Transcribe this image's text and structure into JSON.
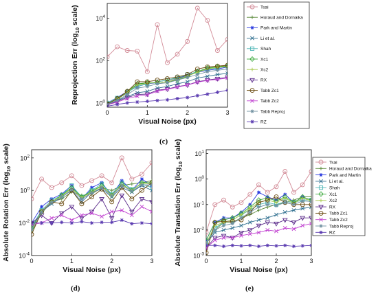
{
  "legend_names": [
    "Tsai",
    "Horaud and Dornaika",
    "Park and Martin",
    "Li et al.",
    "Shah",
    "Xc1",
    "Xc2",
    "RX",
    "Tabb Zc1",
    "Tabb Zc2",
    "Tabb Reproj",
    "RZ"
  ],
  "series_style": [
    {
      "color": "#d28a96",
      "marker": "circle"
    },
    {
      "color": "#5a8a3a",
      "marker": "plus"
    },
    {
      "color": "#2a3adf",
      "marker": "star"
    },
    {
      "color": "#2f6f8f",
      "marker": "x"
    },
    {
      "color": "#4fb6b6",
      "marker": "square"
    },
    {
      "color": "#3aa83a",
      "marker": "diamond"
    },
    {
      "color": "#a6c84a",
      "marker": "plus"
    },
    {
      "color": "#5a2a8a",
      "marker": "tri-down"
    },
    {
      "color": "#6a4a10",
      "marker": "circle"
    },
    {
      "color": "#c040d0",
      "marker": "x"
    },
    {
      "color": "#7090a0",
      "marker": "star"
    },
    {
      "color": "#5a3ab0",
      "marker": "star"
    }
  ],
  "chart_data": [
    {
      "type": "line",
      "panel_label": "(c)",
      "ylabel_main": "Reprojection Err (log",
      "ylabel_sub": "10",
      "ylabel_tail": " scale)",
      "xlabel": "Visual Noise (px)",
      "xlim": [
        0,
        3
      ],
      "ylim_log10": [
        -0.2,
        4.7
      ],
      "x_ticks": [
        {
          "v": 0,
          "t": "0"
        },
        {
          "v": 1,
          "t": "1"
        },
        {
          "v": 2,
          "t": "2"
        },
        {
          "v": 3,
          "t": "3"
        }
      ],
      "y_ticks": [
        {
          "e": 0,
          "base": "10",
          "exp": "0"
        },
        {
          "e": 2,
          "base": "10",
          "exp": "2"
        },
        {
          "e": 4,
          "base": "10",
          "exp": "4"
        }
      ],
      "x": [
        0,
        0.25,
        0.5,
        0.75,
        1,
        1.25,
        1.5,
        1.75,
        2,
        2.25,
        2.5,
        2.75,
        3
      ],
      "series": [
        {
          "values": [
            150,
            450,
            300,
            280,
            30,
            5000,
            80,
            200,
            800,
            30000,
            8000,
            300,
            1000
          ]
        },
        {
          "values": [
            0.9,
            1.5,
            3,
            8,
            8,
            10,
            12,
            15,
            20,
            30,
            40,
            50,
            60
          ]
        },
        {
          "values": [
            1,
            1.8,
            3.5,
            6,
            8,
            9,
            10,
            14,
            20,
            28,
            35,
            40,
            50
          ]
        },
        {
          "values": [
            0.9,
            1.3,
            2,
            3,
            3.5,
            5,
            6,
            8,
            10,
            15,
            18,
            22,
            25
          ]
        },
        {
          "values": [
            1,
            1.7,
            3.2,
            6,
            8,
            10,
            12,
            16,
            22,
            30,
            38,
            45,
            55
          ]
        },
        {
          "values": [
            0.9,
            1.6,
            3.5,
            8,
            9,
            9,
            10,
            12,
            18,
            30,
            45,
            50,
            55
          ]
        },
        {
          "values": [
            0.9,
            1.6,
            3.3,
            7,
            8.5,
            9,
            10,
            13,
            19,
            28,
            40,
            48,
            52
          ]
        },
        {
          "values": [
            0.8,
            1.2,
            1.8,
            2.5,
            2.6,
            4,
            4.5,
            6,
            7,
            10,
            12,
            14,
            16
          ]
        },
        {
          "values": [
            0.9,
            1.6,
            3.5,
            10,
            10,
            12,
            14,
            17,
            22,
            40,
            50,
            55,
            60
          ]
        },
        {
          "values": [
            0.8,
            1.1,
            1.6,
            2.1,
            2.4,
            3.6,
            4.4,
            5.6,
            7,
            9.5,
            11.5,
            13,
            15
          ]
        },
        {
          "values": [
            0.85,
            1.3,
            2.5,
            5,
            6,
            8,
            9,
            12,
            16,
            22,
            30,
            35,
            40
          ]
        },
        {
          "values": [
            0.7,
            0.85,
            1,
            1.1,
            1.2,
            1.3,
            1.4,
            1.6,
            1.8,
            2.2,
            2.6,
            3.2,
            4
          ]
        }
      ]
    },
    {
      "type": "line",
      "panel_label": "(d)",
      "ylabel_main": "Absolute Rotation Err (log",
      "ylabel_sub": "10",
      "ylabel_tail": " scale)",
      "xlabel": "Visual Noise (px)",
      "xlim": [
        0,
        3
      ],
      "ylim_log10": [
        -4,
        2.5
      ],
      "x_ticks": [
        {
          "v": 0,
          "t": "0"
        },
        {
          "v": 1,
          "t": "1"
        },
        {
          "v": 2,
          "t": "2"
        },
        {
          "v": 3,
          "t": "3"
        }
      ],
      "y_ticks": [
        {
          "e": -4,
          "base": "10",
          "exp": "-4"
        },
        {
          "e": -2,
          "base": "10",
          "exp": "-2"
        },
        {
          "e": 0,
          "base": "10",
          "exp": "0"
        },
        {
          "e": 2,
          "base": "10",
          "exp": "2"
        }
      ],
      "x": [
        0,
        0.25,
        0.5,
        0.75,
        1,
        1.25,
        1.5,
        1.75,
        2,
        2.25,
        2.5,
        2.75,
        3
      ],
      "series": [
        {
          "values": [
            0.3,
            5,
            1.5,
            3,
            8,
            2,
            4,
            8,
            3,
            100,
            5,
            10,
            50
          ]
        },
        {
          "values": [
            0.003,
            0.04,
            0.2,
            0.3,
            0.8,
            0.5,
            0.6,
            1.5,
            1,
            2,
            2.5,
            3,
            4
          ]
        },
        {
          "values": [
            0.01,
            0.1,
            0.3,
            0.6,
            2,
            0.3,
            1.5,
            3,
            0.5,
            4,
            1,
            5,
            2
          ]
        },
        {
          "values": [
            0.005,
            0.05,
            0.15,
            0.4,
            1,
            0.2,
            0.8,
            1.2,
            0.4,
            1.5,
            0.8,
            2,
            1
          ]
        },
        {
          "values": [
            0.006,
            0.06,
            0.25,
            0.5,
            2,
            0.4,
            1,
            2.5,
            0.6,
            3,
            1.2,
            2.5,
            1.5
          ]
        },
        {
          "values": [
            0.005,
            0.05,
            0.2,
            0.5,
            1.5,
            0.4,
            0.9,
            2,
            0.5,
            2.5,
            1,
            3,
            3
          ]
        },
        {
          "values": [
            0.004,
            0.05,
            0.2,
            0.45,
            1.3,
            0.35,
            0.8,
            1.8,
            0.5,
            2.3,
            1,
            2.8,
            2.5
          ]
        },
        {
          "values": [
            0.01,
            0.03,
            0.01,
            0.04,
            0.1,
            0.02,
            0.05,
            0.3,
            0.02,
            0.5,
            0.05,
            0.3,
            0.2
          ]
        },
        {
          "values": [
            0.002,
            0.05,
            0.2,
            0.15,
            1,
            0.15,
            0.4,
            1.2,
            0.2,
            1.5,
            0.3,
            1,
            3
          ]
        },
        {
          "values": [
            0.008,
            0.01,
            0.02,
            0.03,
            0.015,
            0.03,
            0.04,
            0.025,
            0.05,
            0.06,
            0.03,
            0.1,
            0.05
          ]
        },
        {
          "values": [
            0.004,
            0.045,
            0.18,
            0.4,
            1.1,
            0.3,
            0.7,
            1.5,
            0.45,
            2,
            0.9,
            2.2,
            2.2
          ]
        },
        {
          "values": [
            0.01,
            0.01,
            0.01,
            0.011,
            0.01,
            0.012,
            0.01,
            0.011,
            0.011,
            0.015,
            0.009,
            0.01,
            0.009
          ]
        }
      ]
    },
    {
      "type": "line",
      "panel_label": "(e)",
      "ylabel_main": "Absolute Translation Err (log",
      "ylabel_sub": "10",
      "ylabel_tail": " scale)",
      "xlabel": "Visual Noise (px)",
      "xlim": [
        0,
        3
      ],
      "ylim_log10": [
        -3,
        1.15
      ],
      "x_ticks": [
        {
          "v": 0,
          "t": "0"
        },
        {
          "v": 1,
          "t": "1"
        },
        {
          "v": 2,
          "t": "2"
        },
        {
          "v": 3,
          "t": "3"
        }
      ],
      "y_ticks": [
        {
          "e": -3,
          "base": "10",
          "exp": "-3"
        },
        {
          "e": -2,
          "base": "10",
          "exp": "-2"
        },
        {
          "e": -1,
          "base": "10",
          "exp": "-1"
        },
        {
          "e": 0,
          "base": "10",
          "exp": "0"
        },
        {
          "e": 1,
          "base": "10",
          "exp": "1"
        }
      ],
      "x": [
        0,
        0.25,
        0.5,
        0.75,
        1,
        1.25,
        1.5,
        1.75,
        2,
        2.25,
        2.5,
        2.75,
        3
      ],
      "series": [
        {
          "values": [
            0.008,
            0.1,
            0.15,
            0.08,
            0.12,
            0.25,
            0.6,
            0.3,
            0.5,
            2,
            0.3,
            0.6,
            2
          ]
        },
        {
          "values": [
            0.003,
            0.01,
            0.02,
            0.02,
            0.03,
            0.04,
            0.06,
            0.08,
            0.1,
            0.12,
            0.15,
            0.2,
            0.2
          ]
        },
        {
          "values": [
            0.004,
            0.02,
            0.03,
            0.03,
            0.05,
            0.1,
            0.3,
            0.2,
            0.15,
            0.25,
            0.12,
            0.2,
            0.15
          ]
        },
        {
          "values": [
            0.003,
            0.008,
            0.01,
            0.012,
            0.015,
            0.02,
            0.025,
            0.03,
            0.04,
            0.05,
            0.06,
            0.07,
            0.08
          ]
        },
        {
          "values": [
            0.003,
            0.012,
            0.02,
            0.025,
            0.04,
            0.06,
            0.1,
            0.12,
            0.1,
            0.13,
            0.12,
            0.15,
            0.15
          ]
        },
        {
          "values": [
            0.004,
            0.02,
            0.025,
            0.03,
            0.045,
            0.08,
            0.15,
            0.18,
            0.14,
            0.2,
            0.12,
            0.2,
            0.15
          ]
        },
        {
          "values": [
            0.003,
            0.015,
            0.02,
            0.025,
            0.04,
            0.07,
            0.12,
            0.15,
            0.12,
            0.18,
            0.11,
            0.18,
            0.14
          ]
        },
        {
          "values": [
            0.002,
            0.005,
            0.006,
            0.005,
            0.008,
            0.01,
            0.015,
            0.02,
            0.018,
            0.025,
            0.02,
            0.03,
            0.03
          ]
        },
        {
          "values": [
            0.0013,
            0.02,
            0.022,
            0.022,
            0.025,
            0.05,
            0.12,
            0.15,
            0.2,
            0.12,
            0.1,
            0.1,
            0.1
          ]
        },
        {
          "values": [
            0.002,
            0.004,
            0.005,
            0.005,
            0.006,
            0.007,
            0.008,
            0.01,
            0.009,
            0.012,
            0.011,
            0.015,
            0.018
          ]
        },
        {
          "values": [
            0.003,
            0.01,
            0.015,
            0.018,
            0.03,
            0.05,
            0.08,
            0.1,
            0.09,
            0.12,
            0.1,
            0.14,
            0.13
          ]
        },
        {
          "values": [
            0.0025,
            0.0025,
            0.0023,
            0.0025,
            0.0024,
            0.0025,
            0.0023,
            0.0025,
            0.0024,
            0.0025,
            0.0023,
            0.0024,
            0.0025
          ]
        }
      ]
    }
  ]
}
